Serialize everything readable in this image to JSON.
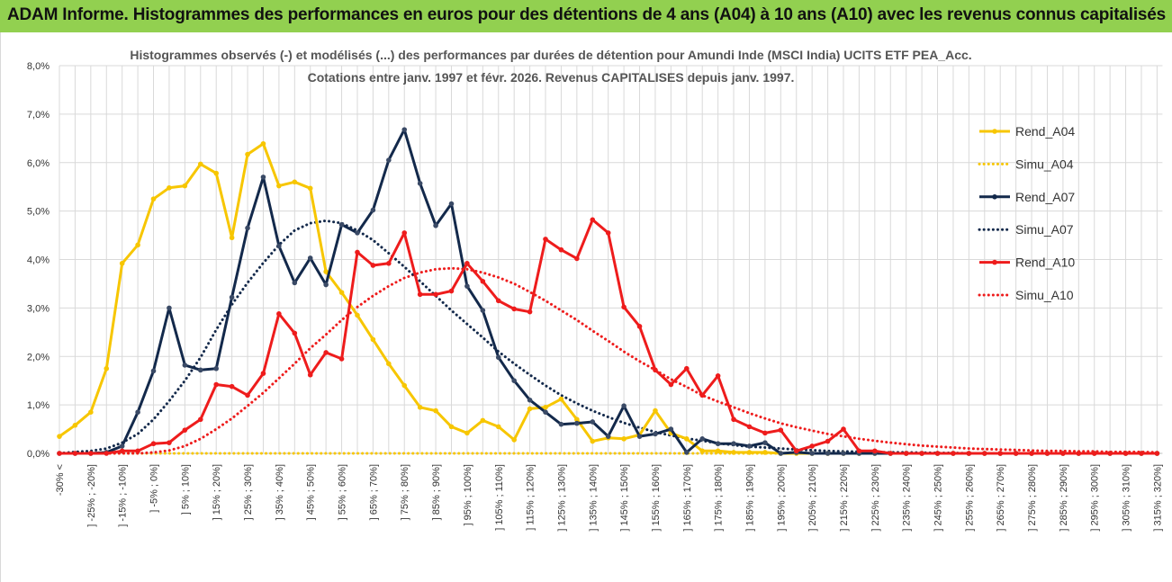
{
  "header": {
    "title": "ADAM Informe. Histogrammes des performances en euros pour des détentions de 4 ans (A04) à 10 ans (A10) avec les revenus connus capitalisés"
  },
  "colors": {
    "header_bg": "#92d050",
    "a04": "#f7c600",
    "a07": "#13294b",
    "a10": "#ee1c1c",
    "grid": "#d9d9d9"
  },
  "chart_data": {
    "type": "line",
    "title_line1": "Histogrammes observés (-)  et modélisés (...) des performances par durées de détention pour Amundi Inde (MSCI India) UCITS ETF PEA_Acc.",
    "title_line2": "Cotations entre janv. 1997 et févr. 2026. Revenus CAPITALISES depuis janv. 1997.",
    "ylim": [
      0,
      8
    ],
    "y_ticks": [
      "0,0%",
      "1,0%",
      "2,0%",
      "3,0%",
      "4,0%",
      "5,0%",
      "6,0%",
      "7,0%",
      "8,0%"
    ],
    "categories": [
      "-30% <",
      "] -30% ; -25%]",
      "] -25% ; -20%]",
      "] -20% ; -15%]",
      "] -15% ; -10%]",
      "] -10% ; -5%]",
      "] -5% ; 0%]",
      "] 0% ; 5%]",
      "] 5% ; 10%]",
      "] 10% ; 15%]",
      "] 15% ; 20%]",
      "] 20% ; 25%]",
      "] 25% ; 30%]",
      "] 30% ; 35%]",
      "] 35% ; 40%]",
      "] 40% ; 45%]",
      "] 45% ; 50%]",
      "] 50% ; 55%]",
      "] 55% ; 60%]",
      "] 60% ; 65%]",
      "] 65% ; 70%]",
      "] 70% ; 75%]",
      "] 75% ; 80%]",
      "] 80% ; 85%]",
      "] 85% ; 90%]",
      "] 90% ; 95%]",
      "] 95% ; 100%]",
      "] 100% ; 105%]",
      "] 105% ; 110%]",
      "] 110% ; 115%]",
      "] 115% ; 120%]",
      "] 120% ; 125%]",
      "] 125% ; 130%]",
      "] 130% ; 135%]",
      "] 135% ; 140%]",
      "] 140% ; 145%]",
      "] 145% ; 150%]",
      "] 150% ; 155%]",
      "] 155% ; 160%]",
      "] 160% ; 165%]",
      "] 165% ; 170%]",
      "] 170% ; 175%]",
      "] 175% ; 180%]",
      "] 180% ; 185%]",
      "] 185% ; 190%]",
      "] 190% ; 195%]",
      "] 195% ; 200%]",
      "] 200% ; 205%]",
      "] 205% ; 210%]",
      "] 210% ; 215%]",
      "] 215% ; 220%]",
      "] 220% ; 225%]",
      "] 225% ; 230%]",
      "] 230% ; 235%]",
      "] 235% ; 240%]",
      "] 240% ; 245%]",
      "] 245% ; 250%]",
      "] 250% ; 255%]",
      "] 255% ; 260%]",
      "] 260% ; 265%]",
      "] 265% ; 270%]",
      "] 270% ; 275%]",
      "] 275% ; 280%]",
      "] 280% ; 285%]",
      "] 285% ; 290%]",
      "] 290% ; 295%]",
      "] 295% ; 300%]",
      "] 300% ; 305%]",
      "] 305% ; 310%]",
      "] 310% ; 315%]",
      "] 315% ; 320%]"
    ],
    "series": [
      {
        "name": "Rend_A04",
        "style": "solid",
        "color": "#f7c600",
        "values": [
          0.35,
          0.58,
          0.85,
          1.75,
          3.92,
          4.3,
          5.25,
          5.48,
          5.52,
          5.97,
          5.78,
          4.45,
          6.17,
          6.39,
          5.52,
          5.6,
          5.47,
          3.75,
          3.32,
          2.85,
          2.35,
          1.85,
          1.4,
          0.95,
          0.88,
          0.55,
          0.42,
          0.68,
          0.55,
          0.28,
          0.92,
          0.95,
          1.12,
          0.7,
          0.25,
          0.32,
          0.3,
          0.38,
          0.88,
          0.42,
          0.3,
          0.05,
          0.05,
          0.02,
          0.02,
          0.02,
          0.0,
          0.0,
          0.0,
          0.0,
          0.0,
          0.0,
          0.0,
          0.0,
          0.0,
          0.0,
          0.0,
          0.0,
          0.0,
          0.0,
          0.0,
          0.0,
          0.0,
          0.0,
          0.0,
          0.0,
          0.0,
          0.0,
          0.0,
          0.0,
          0.0
        ]
      },
      {
        "name": "Simu_A04",
        "style": "dotted",
        "color": "#f7c600",
        "values": [
          0.0,
          0.0,
          0.0,
          0.0,
          0.0,
          0.0,
          0.0,
          0.0,
          0.0,
          0.0,
          0.0,
          0.0,
          0.0,
          0.0,
          0.0,
          0.0,
          0.0,
          0.0,
          0.0,
          0.0,
          0.0,
          0.0,
          0.0,
          0.0,
          0.0,
          0.0,
          0.0,
          0.0,
          0.0,
          0.0,
          0.0,
          0.0,
          0.0,
          0.0,
          0.0,
          0.0,
          0.0,
          0.0,
          0.0,
          0.0,
          0.0,
          0.0,
          0.0,
          0.0,
          0.0,
          0.0,
          0.0,
          0.0,
          0.0,
          0.0,
          0.0,
          0.0,
          0.0,
          0.0,
          0.0,
          0.0,
          0.0,
          0.0,
          0.0,
          0.0,
          0.0,
          0.0,
          0.0,
          0.0,
          0.0,
          0.0,
          0.0,
          0.0,
          0.0,
          0.0,
          0.0
        ]
      },
      {
        "name": "Rend_A07",
        "style": "solid",
        "color": "#13294b",
        "values": [
          0.0,
          0.0,
          0.0,
          0.02,
          0.15,
          0.85,
          1.7,
          3.0,
          1.82,
          1.72,
          1.75,
          3.22,
          4.65,
          5.7,
          4.28,
          3.52,
          4.03,
          3.48,
          4.72,
          4.55,
          5.02,
          6.05,
          6.68,
          5.57,
          4.7,
          5.15,
          3.45,
          2.95,
          1.98,
          1.5,
          1.1,
          0.85,
          0.6,
          0.62,
          0.65,
          0.35,
          0.98,
          0.35,
          0.4,
          0.5,
          0.02,
          0.3,
          0.2,
          0.2,
          0.15,
          0.22,
          0.0,
          0.02,
          0.0,
          0.0,
          0.0,
          0.0,
          0.0,
          0.0,
          0.0,
          0.0,
          0.0,
          0.0,
          0.0,
          0.0,
          0.0,
          0.0,
          0.0,
          0.0,
          0.0,
          0.0,
          0.0,
          0.0,
          0.0,
          0.0,
          0.0
        ]
      },
      {
        "name": "Simu_A07",
        "style": "dotted",
        "color": "#13294b",
        "values": [
          0.0,
          0.03,
          0.05,
          0.1,
          0.22,
          0.4,
          0.7,
          1.08,
          1.5,
          1.98,
          2.55,
          3.07,
          3.52,
          3.93,
          4.3,
          4.6,
          4.75,
          4.8,
          4.75,
          4.6,
          4.4,
          4.13,
          3.85,
          3.55,
          3.25,
          2.95,
          2.67,
          2.39,
          2.1,
          1.85,
          1.62,
          1.4,
          1.2,
          1.03,
          0.88,
          0.75,
          0.63,
          0.53,
          0.44,
          0.37,
          0.31,
          0.26,
          0.21,
          0.17,
          0.14,
          0.12,
          0.1,
          0.08,
          0.065,
          0.05,
          0.04,
          0.035,
          0.03,
          0.02,
          0.02,
          0.015,
          0.01,
          0.01,
          0.0,
          0.0,
          0.0,
          0.0,
          0.0,
          0.0,
          0.0,
          0.0,
          0.0,
          0.0,
          0.0,
          0.0,
          0.0
        ]
      },
      {
        "name": "Rend_A10",
        "style": "solid",
        "color": "#ee1c1c",
        "values": [
          0.0,
          0.0,
          0.0,
          0.0,
          0.05,
          0.05,
          0.2,
          0.22,
          0.48,
          0.7,
          1.42,
          1.38,
          1.2,
          1.65,
          2.88,
          2.48,
          1.62,
          2.08,
          1.95,
          4.15,
          3.88,
          3.92,
          4.55,
          3.28,
          3.28,
          3.35,
          3.92,
          3.55,
          3.15,
          2.98,
          2.92,
          4.42,
          4.2,
          4.02,
          4.82,
          4.55,
          3.02,
          2.62,
          1.72,
          1.42,
          1.75,
          1.2,
          1.6,
          0.7,
          0.55,
          0.42,
          0.48,
          0.05,
          0.15,
          0.25,
          0.5,
          0.05,
          0.05,
          0.0,
          0.0,
          0.0,
          0.0,
          0.0,
          0.0,
          0.0,
          0.0,
          0.0,
          0.0,
          0.0,
          0.0,
          0.0,
          0.0,
          0.0,
          0.0,
          0.0,
          0.0
        ]
      },
      {
        "name": "Simu_A10",
        "style": "dotted",
        "color": "#ee1c1c",
        "values": [
          0.0,
          0.0,
          0.0,
          0.0,
          0.0,
          0.0,
          0.02,
          0.06,
          0.15,
          0.3,
          0.5,
          0.72,
          0.98,
          1.25,
          1.55,
          1.85,
          2.17,
          2.45,
          2.75,
          3.02,
          3.25,
          3.45,
          3.62,
          3.73,
          3.8,
          3.82,
          3.8,
          3.73,
          3.63,
          3.5,
          3.33,
          3.15,
          2.95,
          2.75,
          2.53,
          2.32,
          2.1,
          1.9,
          1.72,
          1.53,
          1.37,
          1.2,
          1.07,
          0.95,
          0.83,
          0.72,
          0.62,
          0.54,
          0.47,
          0.4,
          0.35,
          0.3,
          0.26,
          0.22,
          0.19,
          0.16,
          0.14,
          0.12,
          0.1,
          0.09,
          0.08,
          0.07,
          0.06,
          0.05,
          0.05,
          0.04,
          0.04,
          0.03,
          0.03,
          0.03,
          0.02
        ]
      }
    ]
  }
}
